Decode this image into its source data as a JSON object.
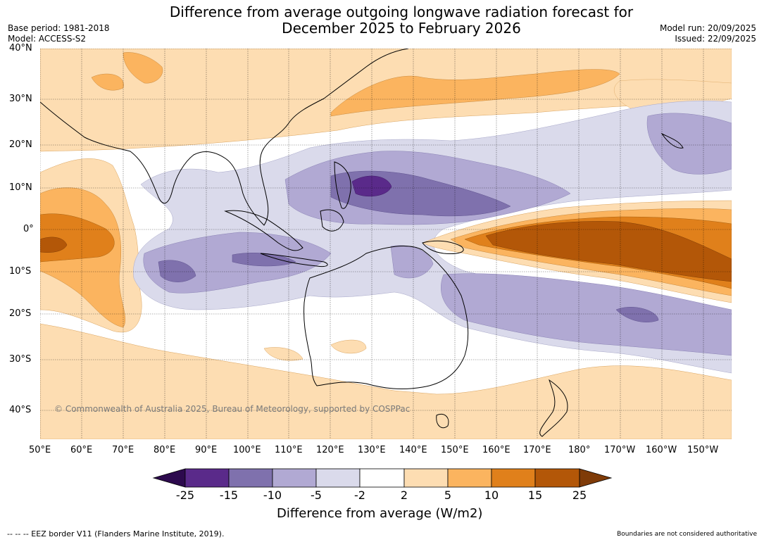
{
  "title": {
    "line1": "Difference from average outgoing longwave radiation forecast for",
    "line2": "December 2025 to February 2026"
  },
  "meta_left": {
    "base_period": "Base period: 1981-2018",
    "model": "Model: ACCESS-S2"
  },
  "meta_right": {
    "model_run": "Model run: 20/09/2025",
    "issued": "Issued: 22/09/2025"
  },
  "map": {
    "lat_labels": [
      "40°N",
      "30°N",
      "20°N",
      "10°N",
      "0°",
      "10°S",
      "20°S",
      "30°S",
      "40°S"
    ],
    "lon_labels": [
      "50°E",
      "60°E",
      "70°E",
      "80°E",
      "90°E",
      "100°E",
      "110°E",
      "120°E",
      "130°E",
      "140°E",
      "150°E",
      "160°E",
      "170°E",
      "180°",
      "170°W",
      "160°W",
      "150°W"
    ],
    "copyright": "© Commonwealth of Australia 2025, Bureau of Meteorology, supported by COSPPac"
  },
  "legend": {
    "title": "Difference from average (W/m2)",
    "ticks": [
      "-25",
      "-15",
      "-10",
      "-5",
      "-2",
      "2",
      "5",
      "10",
      "15",
      "25"
    ],
    "colors": [
      "#2d0a4e",
      "#5a2a8a",
      "#7f71ad",
      "#b1a9d3",
      "#dadaeb",
      "#ffffff",
      "#fdddb2",
      "#fbb45f",
      "#e0801b",
      "#b35708",
      "#7f3b08"
    ]
  },
  "footer": {
    "left": "--  --  -- EEZ border V11 (Flanders Marine Institute, 2019).",
    "right": "Boundaries are not considered authoritative"
  }
}
